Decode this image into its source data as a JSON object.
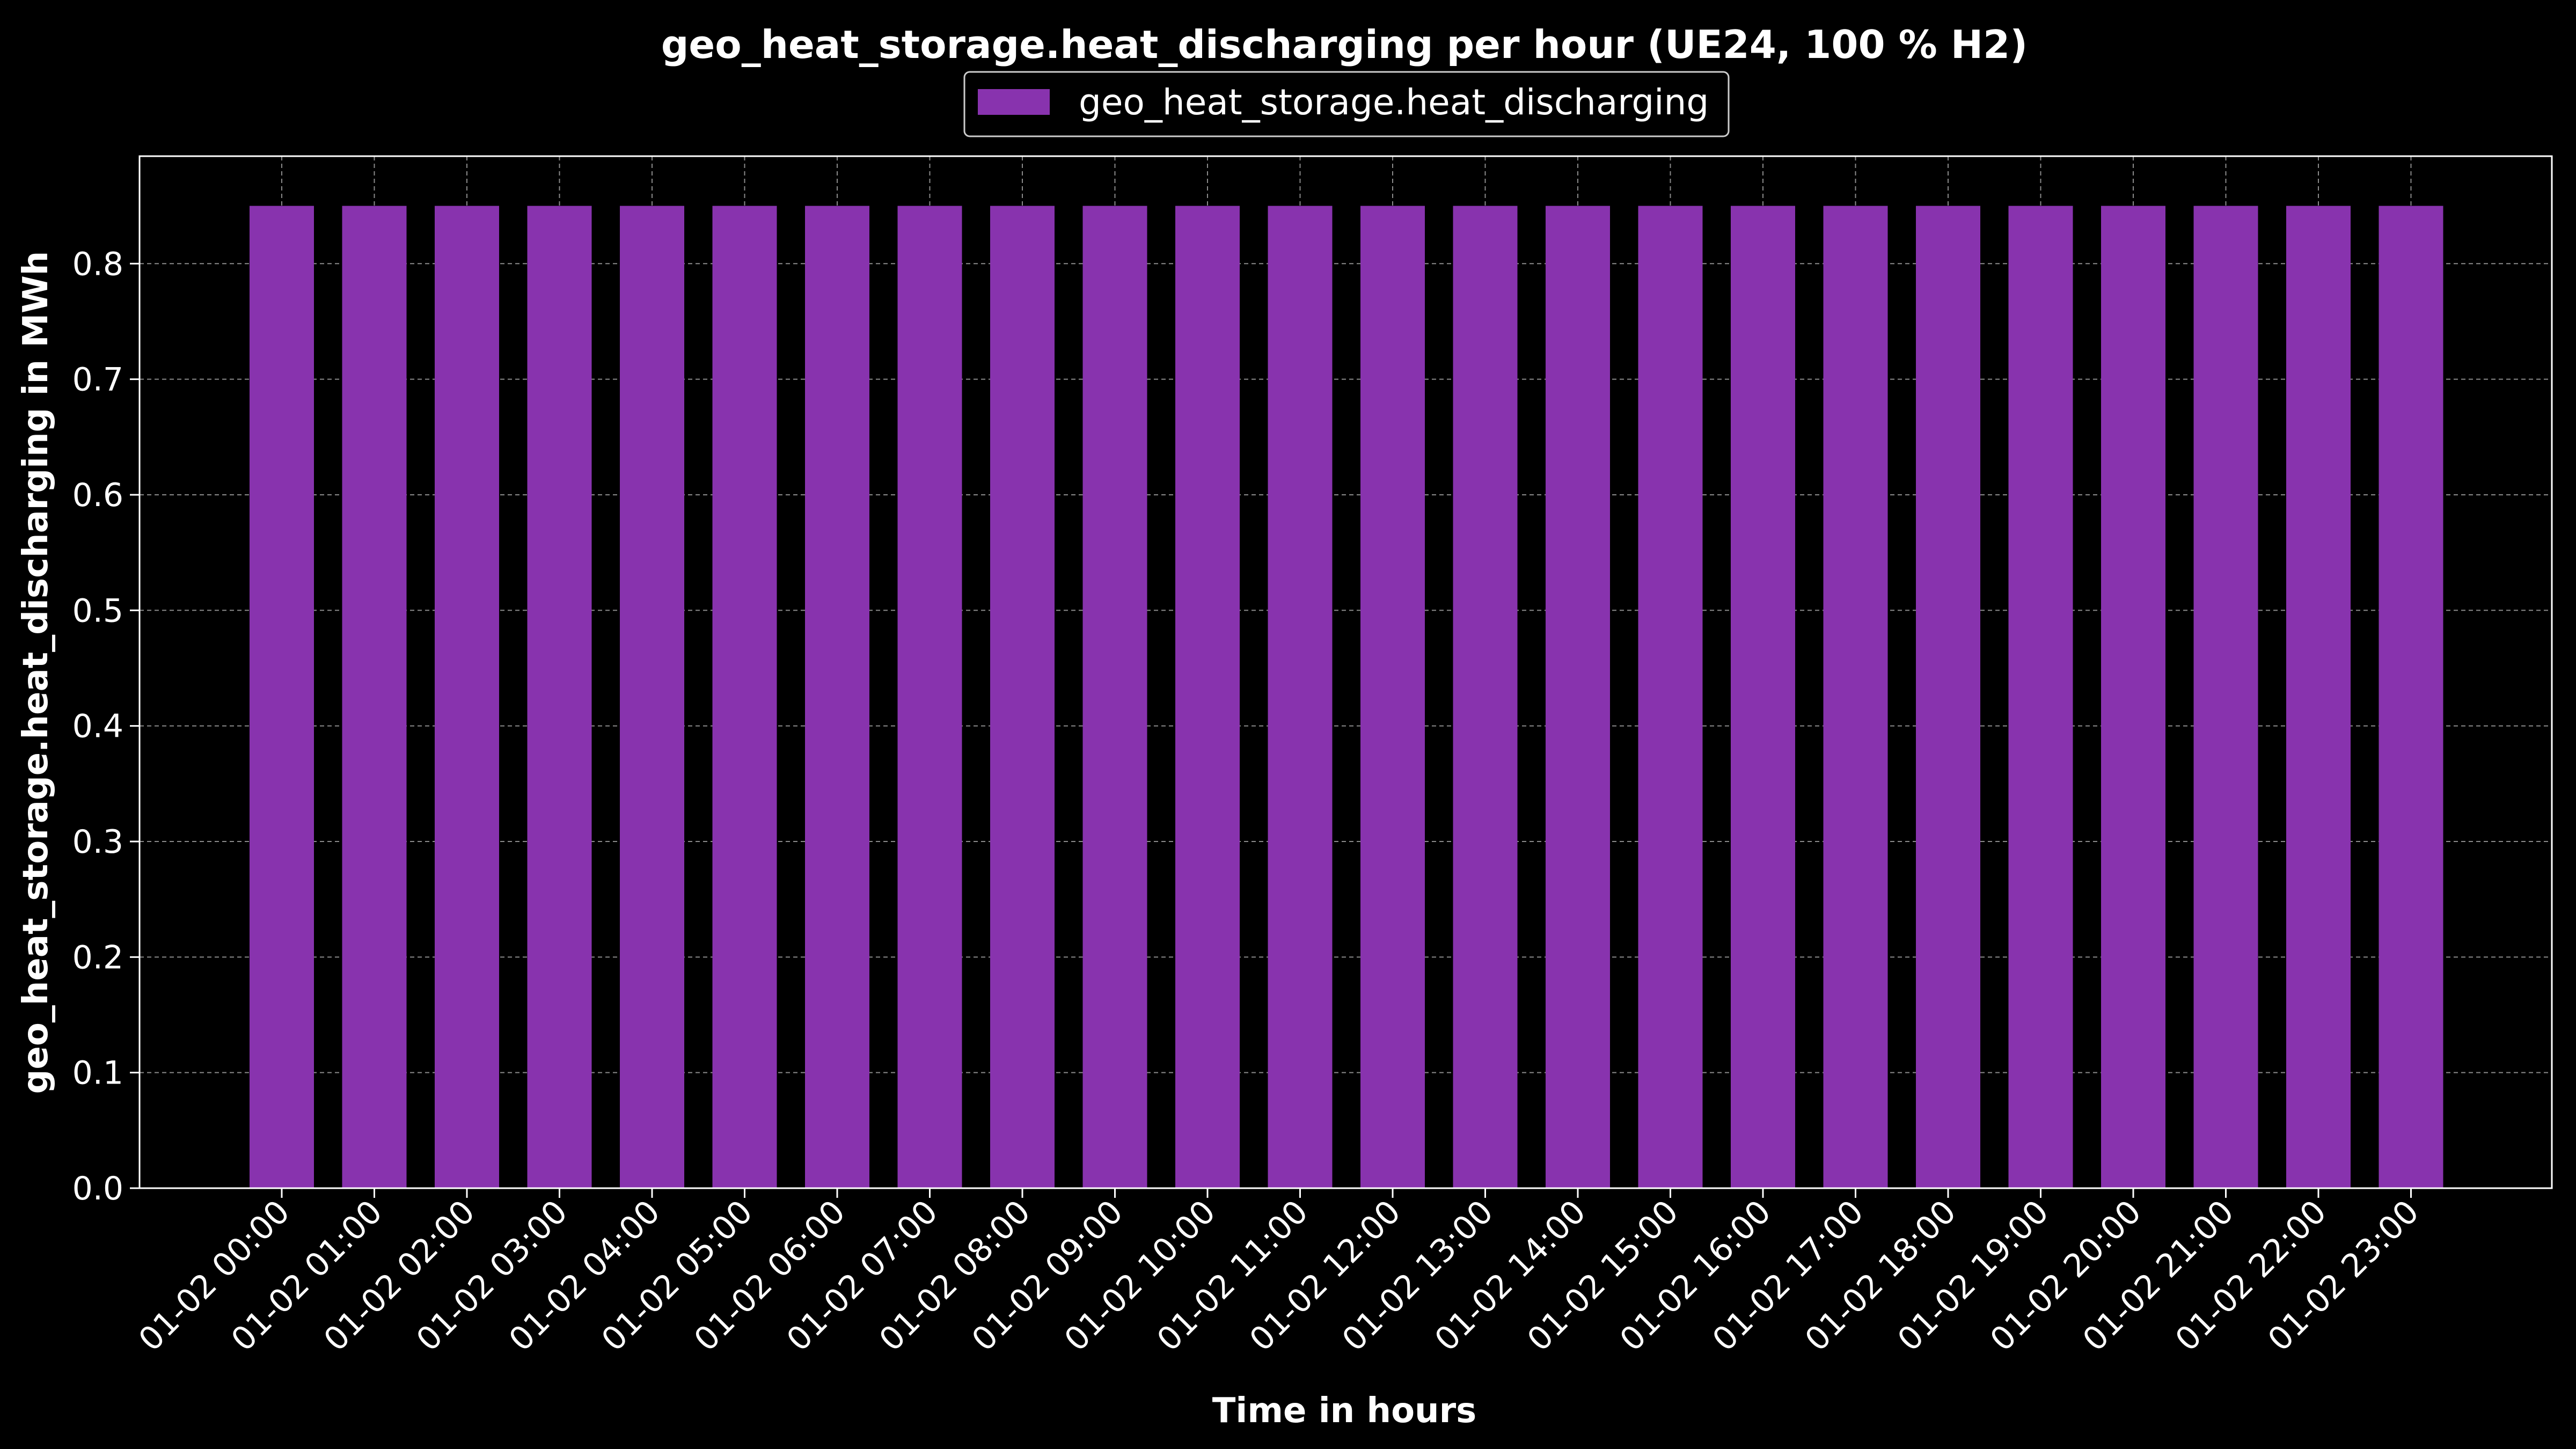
{
  "chart_data": {
    "type": "bar",
    "title": "geo_heat_storage.heat_discharging per hour (UE24, 100 % H2)",
    "xlabel": "Time in hours",
    "ylabel": "geo_heat_storage.heat_discharging in MWh",
    "categories": [
      "01-02 00:00",
      "01-02 01:00",
      "01-02 02:00",
      "01-02 03:00",
      "01-02 04:00",
      "01-02 05:00",
      "01-02 06:00",
      "01-02 07:00",
      "01-02 08:00",
      "01-02 09:00",
      "01-02 10:00",
      "01-02 11:00",
      "01-02 12:00",
      "01-02 13:00",
      "01-02 14:00",
      "01-02 15:00",
      "01-02 16:00",
      "01-02 17:00",
      "01-02 18:00",
      "01-02 19:00",
      "01-02 20:00",
      "01-02 21:00",
      "01-02 22:00",
      "01-02 23:00"
    ],
    "series": [
      {
        "name": "geo_heat_storage.heat_discharging",
        "color": "#8833ae",
        "values": [
          0.85,
          0.85,
          0.85,
          0.85,
          0.85,
          0.85,
          0.85,
          0.85,
          0.85,
          0.85,
          0.85,
          0.85,
          0.85,
          0.85,
          0.85,
          0.85,
          0.85,
          0.85,
          0.85,
          0.85,
          0.85,
          0.85,
          0.85,
          0.85
        ]
      }
    ],
    "ylim": [
      0,
      0.893
    ],
    "yticks": [
      "0.0",
      "0.1",
      "0.2",
      "0.3",
      "0.4",
      "0.5",
      "0.6",
      "0.7",
      "0.8"
    ],
    "grid": true,
    "legend_position": "top-center"
  }
}
